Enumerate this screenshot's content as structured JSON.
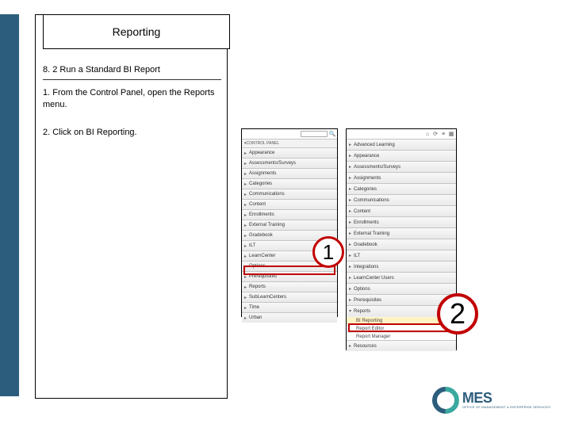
{
  "title": "Reporting",
  "subheading": "8. 2 Run a Standard BI Report",
  "steps": {
    "s1": "1. From the Control Panel, open the Reports menu.",
    "s2": "2. Click on BI Reporting."
  },
  "panel1": {
    "topTitle": "CONTROL PANEL",
    "items": [
      "Appearance",
      "Assessments/Surveys",
      "Assignments",
      "Categories",
      "Communications",
      "Content",
      "Enrollments",
      "External Training",
      "Gradebook",
      "ILT",
      "LearnCenter",
      "Options",
      "Prerequisites"
    ],
    "reports": "Reports",
    "afterReports": [
      "SubLearnCenters",
      "Time",
      "Urban"
    ]
  },
  "panel2": {
    "items": [
      "Advanced Learning",
      "Appearance",
      "Assessments/Surveys",
      "Assignments",
      "Categories",
      "Communications",
      "Content",
      "Enrollments",
      "External Training",
      "Gradebook",
      "ILT",
      "Integrations",
      "LearnCenter Users",
      "Options",
      "Prerequisites"
    ],
    "reports": "Reports",
    "subitems": [
      "BI Reporting",
      "Report Editor",
      "Report Manager"
    ],
    "after": [
      "Resources"
    ]
  },
  "circles": {
    "c1": "1",
    "c2": "2"
  },
  "colors": {
    "stripe": "#2c5d7c",
    "highlight": "#bf0000",
    "circle": "#c20000"
  },
  "logo": {
    "text": "MES",
    "prefix": "O",
    "sub": "OFFICE OF MANAGEMENT & ENTERPRISE SERVICES"
  }
}
